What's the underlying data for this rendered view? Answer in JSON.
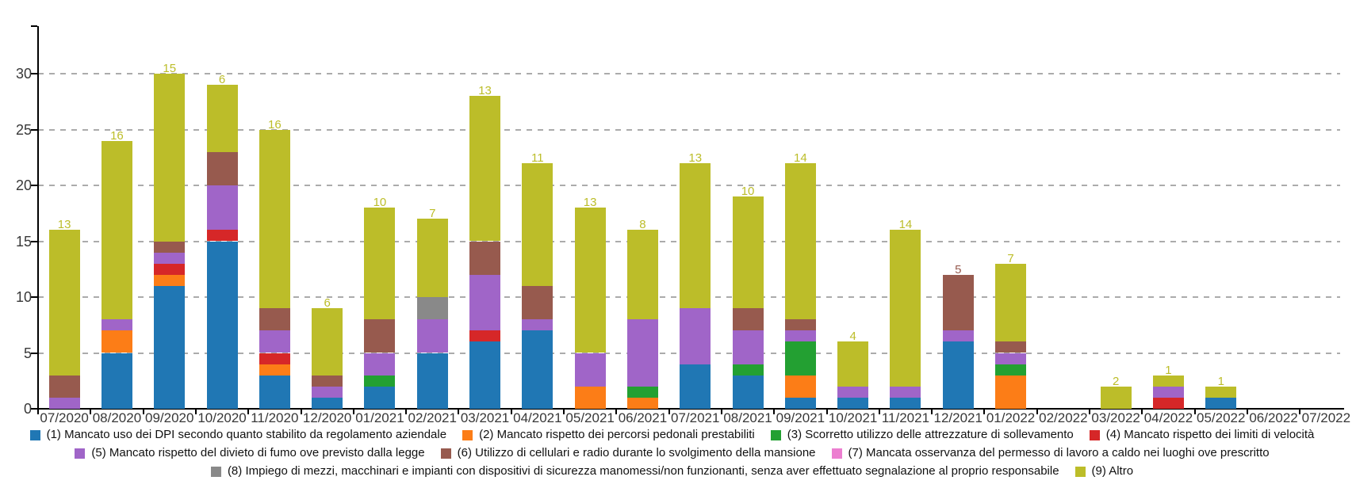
{
  "chart_data": {
    "type": "bar",
    "stacked": true,
    "title": "",
    "xlabel": "",
    "ylabel": "",
    "grid": "horizontal-dashed",
    "legend_position": "bottom",
    "ylim": [
      0,
      34
    ],
    "y_ticks": [
      0,
      5,
      10,
      15,
      20,
      25,
      30
    ],
    "gridline_values": [
      5,
      10,
      15,
      20,
      25,
      30
    ],
    "categories": [
      "07/2020",
      "08/2020",
      "09/2020",
      "10/2020",
      "11/2020",
      "12/2020",
      "01/2021",
      "02/2021",
      "03/2021",
      "04/2021",
      "05/2021",
      "06/2021",
      "07/2021",
      "08/2021",
      "09/2021",
      "10/2021",
      "11/2021",
      "12/2021",
      "01/2022",
      "02/2022",
      "03/2022",
      "04/2022",
      "05/2022",
      "06/2022",
      "07/2022"
    ],
    "series": [
      {
        "name": "(1) Mancato uso dei DPI secondo quanto stabilito da regolamento aziendale",
        "color": "#2077B4",
        "values": [
          0,
          5,
          11,
          15,
          3,
          1,
          2,
          5,
          6,
          7,
          0,
          0,
          4,
          3,
          1,
          1,
          1,
          6,
          0,
          0,
          0,
          0,
          1,
          0,
          0
        ]
      },
      {
        "name": "(2) Mancato rispetto dei percorsi pedonali prestabiliti",
        "color": "#FC7D17",
        "values": [
          0,
          2,
          1,
          0,
          1,
          0,
          0,
          0,
          0,
          0,
          2,
          1,
          0,
          0,
          2,
          0,
          0,
          0,
          3,
          0,
          0,
          0,
          0,
          0,
          0
        ]
      },
      {
        "name": "(3) Scorretto utilizzo delle attrezzature di sollevamento",
        "color": "#23A032",
        "values": [
          0,
          0,
          0,
          0,
          0,
          0,
          1,
          0,
          0,
          0,
          0,
          1,
          0,
          1,
          3,
          0,
          0,
          0,
          1,
          0,
          0,
          0,
          0,
          0,
          0
        ]
      },
      {
        "name": "(4) Mancato rispetto dei limiti di velocità",
        "color": "#D62728",
        "values": [
          0,
          0,
          1,
          1,
          1,
          0,
          0,
          0,
          1,
          0,
          0,
          0,
          0,
          0,
          0,
          0,
          0,
          0,
          0,
          0,
          0,
          1,
          0,
          0,
          0
        ]
      },
      {
        "name": "(5) Mancato rispetto del divieto di fumo ove previsto dalla legge",
        "color": "#A065C8",
        "values": [
          1,
          1,
          1,
          4,
          2,
          1,
          2,
          3,
          5,
          1,
          3,
          6,
          5,
          3,
          1,
          1,
          1,
          1,
          1,
          0,
          0,
          1,
          0,
          0,
          0
        ]
      },
      {
        "name": "(6) Utilizzo di cellulari e radio durante lo svolgimento della mansione",
        "color": "#975A4E",
        "values": [
          2,
          0,
          1,
          3,
          2,
          1,
          3,
          0,
          3,
          3,
          0,
          0,
          0,
          2,
          1,
          0,
          0,
          5,
          1,
          0,
          0,
          0,
          0,
          0,
          0
        ]
      },
      {
        "name": "(7) Mancata osservanza del permesso di lavoro a caldo nei luoghi ove prescritto",
        "color": "#EC7ED0",
        "values": [
          0,
          0,
          0,
          0,
          0,
          0,
          0,
          0,
          0,
          0,
          0,
          0,
          0,
          0,
          0,
          0,
          0,
          0,
          0,
          0,
          0,
          0,
          0,
          0,
          0
        ]
      },
      {
        "name": "(8) Impiego di mezzi, macchinari e impianti con dispositivi di sicurezza manomessi/non funzionanti, senza aver effettuato segnalazione al proprio responsabile",
        "color": "#898989",
        "values": [
          0,
          0,
          0,
          0,
          0,
          0,
          0,
          2,
          0,
          0,
          0,
          0,
          0,
          0,
          0,
          0,
          0,
          0,
          0,
          0,
          0,
          0,
          0,
          0,
          0
        ]
      },
      {
        "name": "(9) Altro",
        "color": "#BCBD29",
        "values": [
          13,
          16,
          15,
          6,
          16,
          6,
          10,
          7,
          13,
          11,
          13,
          8,
          13,
          10,
          14,
          4,
          14,
          0,
          7,
          0,
          2,
          1,
          1,
          0,
          0
        ]
      }
    ],
    "legend_rows": [
      [
        0,
        1,
        2,
        3
      ],
      [
        4,
        5,
        6
      ],
      [
        7,
        8
      ]
    ]
  },
  "colors": {
    "axis": "#000000",
    "tick_label": "#383838",
    "gridline": "#ABABAB",
    "background": "#FFFFFF"
  }
}
